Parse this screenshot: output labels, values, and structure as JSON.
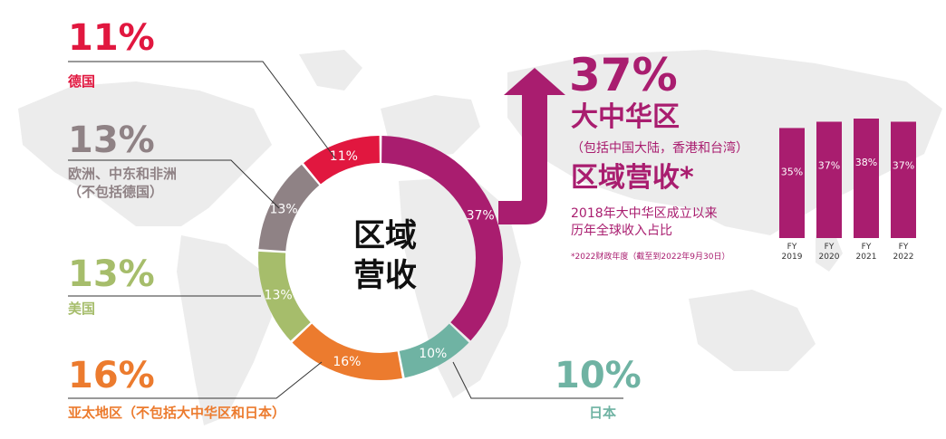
{
  "colors": {
    "greater_china": "#a91d6f",
    "germany": "#e1173f",
    "europe_mea": "#8f8285",
    "americas": "#a6bd6b",
    "apac": "#ec7b2e",
    "japan": "#6fb3a3",
    "map": "#ececec"
  },
  "chart_data": [
    {
      "type": "pie",
      "donut": true,
      "title": "区域营收",
      "title_lines": [
        "区域",
        "营收"
      ],
      "slices": [
        {
          "key": "greater_china",
          "label": "大中华区",
          "value": 37,
          "label_text": "37%"
        },
        {
          "key": "japan",
          "label": "日本",
          "value": 10,
          "label_text": "10%"
        },
        {
          "key": "apac",
          "label": "亚太地区（不包括大中华区和日本）",
          "value": 16,
          "label_text": "16%"
        },
        {
          "key": "americas",
          "label": "美国",
          "value": 13,
          "label_text": "13%"
        },
        {
          "key": "europe_mea",
          "label": "欧洲、中东和非洲（不包括德国）",
          "label_lines": [
            "欧洲、中东和非洲",
            "（不包括德国）"
          ],
          "value": 13,
          "label_text": "13%"
        },
        {
          "key": "germany",
          "label": "德国",
          "value": 11,
          "label_text": "11%"
        }
      ]
    },
    {
      "type": "bar",
      "title": "区域营收*",
      "subtitle_lines": [
        "2018年大中华区成立以来",
        "历年全球收入占比"
      ],
      "footnote": "*2022财政年度（截至到2022年9月30日）",
      "categories": [
        [
          "FY",
          "2019"
        ],
        [
          "FY",
          "2020"
        ],
        [
          "FY",
          "2021"
        ],
        [
          "FY",
          "2022"
        ]
      ],
      "values": [
        35,
        37,
        38,
        37
      ],
      "value_labels": [
        "35%",
        "37%",
        "38%",
        "37%"
      ]
    }
  ],
  "highlight": {
    "percent": "37%",
    "region": "大中华区",
    "region_note": "（包括中国大陆，香港和台湾）"
  }
}
